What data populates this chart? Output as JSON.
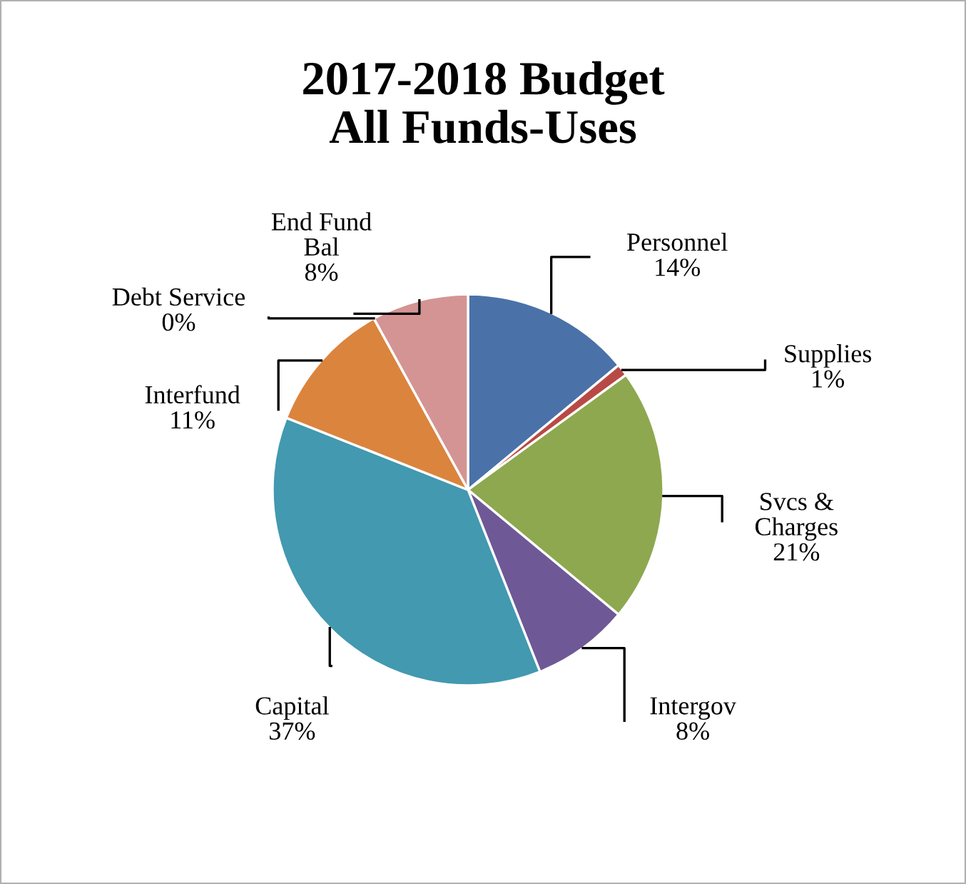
{
  "chart_data": {
    "type": "pie",
    "title": "2017-2018 Budget\nAll Funds-Uses",
    "categories": [
      "Personnel",
      "Supplies",
      "Svcs &\nCharges",
      "Intergov",
      "Capital",
      "Interfund",
      "Debt Service",
      "End Fund\nBal"
    ],
    "values": [
      14,
      1,
      21,
      8,
      37,
      11,
      0,
      8
    ],
    "value_labels": [
      "14%",
      "1%",
      "21%",
      "8%",
      "37%",
      "11%",
      "0%",
      "8%"
    ],
    "colors": [
      "#4a72a8",
      "#b84a45",
      "#8ea84f",
      "#6f5896",
      "#4299b0",
      "#db843d",
      "#95b3d7",
      "#d49493"
    ],
    "legend": false
  }
}
